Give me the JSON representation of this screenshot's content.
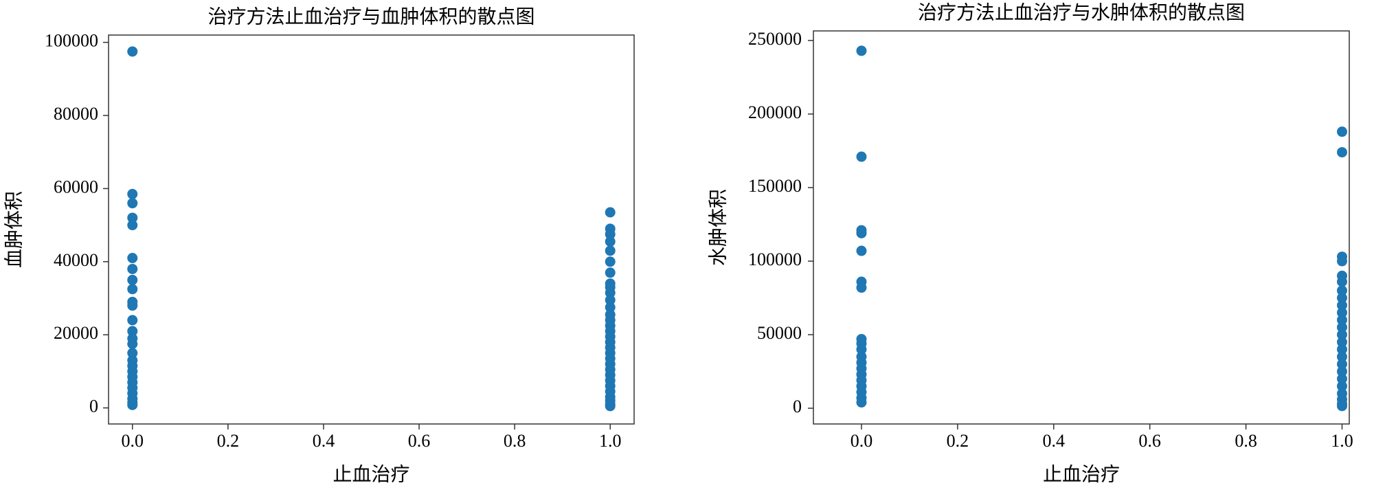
{
  "chart_data": [
    {
      "type": "scatter",
      "title": "治疗方法止血治疗与血肿体积的散点图",
      "xlabel": "止血治疗",
      "ylabel": "血肿体积",
      "color": "#1f77b4",
      "x": [
        0,
        0,
        0,
        0,
        0,
        0,
        0,
        0,
        0,
        0,
        0,
        0,
        0,
        0,
        0,
        0,
        0,
        0,
        0,
        0,
        0,
        0,
        0,
        0,
        0,
        0,
        1,
        1,
        1,
        1,
        1,
        1,
        1,
        1,
        1,
        1,
        1,
        1,
        1,
        1,
        1,
        1,
        1,
        1,
        1,
        1,
        1,
        1,
        1,
        1,
        1,
        1,
        1,
        1,
        1,
        1,
        1
      ],
      "values": [
        97500,
        58500,
        56000,
        52000,
        50000,
        41000,
        38000,
        35000,
        32500,
        29000,
        28000,
        24000,
        21000,
        19000,
        17500,
        15000,
        13000,
        11500,
        10000,
        8500,
        7000,
        5500,
        4000,
        2500,
        1500,
        800,
        53500,
        49000,
        47500,
        45500,
        43000,
        40000,
        37000,
        34000,
        33000,
        31500,
        29500,
        27500,
        25500,
        24000,
        22500,
        21000,
        19500,
        18000,
        16500,
        15000,
        13500,
        12000,
        10500,
        9000,
        7500,
        6000,
        4500,
        3000,
        2000,
        1000,
        500
      ],
      "xlim": [
        -0.05,
        1.05
      ],
      "ylim": [
        -4400,
        102000
      ],
      "xticks": [
        {
          "value": 0,
          "label": "0.0"
        },
        {
          "value": 0.2,
          "label": "0.2"
        },
        {
          "value": 0.4,
          "label": "0.4"
        },
        {
          "value": 0.6,
          "label": "0.6"
        },
        {
          "value": 0.8,
          "label": "0.8"
        },
        {
          "value": 1,
          "label": "1.0"
        }
      ],
      "yticks": [
        0,
        20000,
        40000,
        60000,
        80000,
        100000
      ]
    },
    {
      "type": "scatter",
      "title": "治疗方法止血治疗与水肿体积的散点图",
      "xlabel": "止血治疗",
      "ylabel": "水肿体积",
      "color": "#1f77b4",
      "x": [
        0,
        0,
        0,
        0,
        0,
        0,
        0,
        0,
        0,
        0,
        0,
        0,
        0,
        0,
        0,
        0,
        0,
        0,
        0,
        1,
        1,
        1,
        1,
        1,
        1,
        1,
        1,
        1,
        1,
        1,
        1,
        1,
        1,
        1,
        1,
        1,
        1,
        1,
        1,
        1,
        1,
        1,
        1
      ],
      "values": [
        243000,
        171000,
        121000,
        119000,
        107000,
        86000,
        82000,
        47000,
        44000,
        40000,
        35000,
        31000,
        27000,
        23000,
        19000,
        15000,
        11000,
        7000,
        4000,
        188000,
        174000,
        103000,
        100000,
        90000,
        86000,
        80000,
        75000,
        70000,
        65000,
        60000,
        55000,
        50000,
        45000,
        40000,
        35000,
        30000,
        25000,
        20000,
        15000,
        10000,
        6000,
        3000,
        1500
      ],
      "xlim": [
        -0.1,
        1.015
      ],
      "ylim": [
        -10700,
        256500
      ],
      "xticks": [
        {
          "value": 0,
          "label": "0.0"
        },
        {
          "value": 0.2,
          "label": "0.2"
        },
        {
          "value": 0.4,
          "label": "0.4"
        },
        {
          "value": 0.6,
          "label": "0.6"
        },
        {
          "value": 0.8,
          "label": "0.8"
        },
        {
          "value": 1,
          "label": "1.0"
        }
      ],
      "yticks": [
        0,
        50000,
        100000,
        150000,
        200000,
        250000
      ]
    }
  ]
}
